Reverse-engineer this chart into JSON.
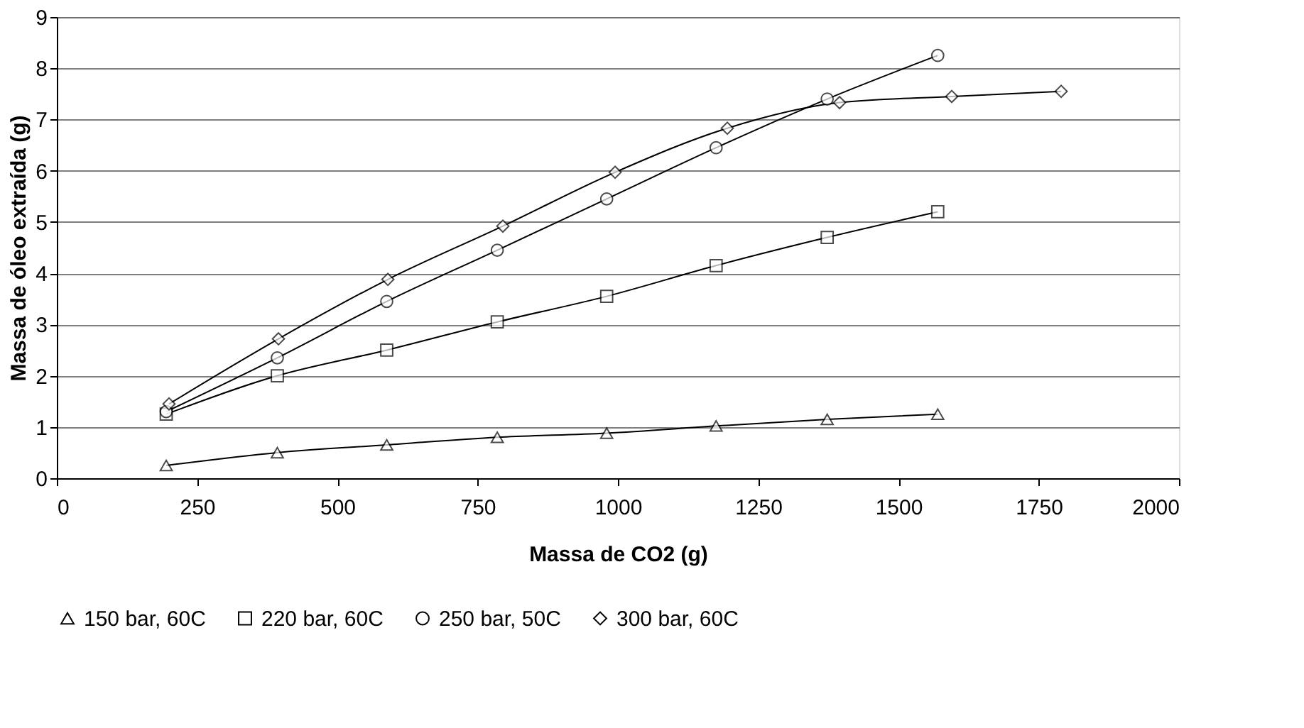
{
  "chart_data": {
    "type": "line",
    "xlabel": "Massa de CO2 (g)",
    "ylabel": "Massa de óleo extraída (g)",
    "xlim": [
      0,
      2000
    ],
    "xticks": [
      0,
      250,
      500,
      750,
      1000,
      1250,
      1500,
      1750,
      2000
    ],
    "ylim": [
      0,
      9
    ],
    "yticks": [
      0,
      1,
      2,
      3,
      4,
      5,
      6,
      7,
      8,
      9
    ],
    "grid": "y",
    "legend": "bottom",
    "line_style": "solid",
    "series": [
      {
        "name": "150 bar, 60C",
        "color": "#000000",
        "marker": "triangle",
        "x": [
          195,
          393,
          588,
          785,
          980,
          1175,
          1373,
          1570
        ],
        "values": [
          0.25,
          0.5,
          0.65,
          0.8,
          0.88,
          1.02,
          1.15,
          1.25
        ]
      },
      {
        "name": "220 bar, 60C",
        "color": "#000000",
        "marker": "square",
        "x": [
          195,
          393,
          588,
          785,
          980,
          1175,
          1373,
          1570
        ],
        "values": [
          1.25,
          2.0,
          2.5,
          3.05,
          3.55,
          4.15,
          4.7,
          5.2
        ]
      },
      {
        "name": "250 bar, 50C",
        "color": "#000000",
        "marker": "circle",
        "x": [
          195,
          393,
          588,
          785,
          980,
          1175,
          1373,
          1570
        ],
        "values": [
          1.3,
          2.35,
          3.45,
          4.45,
          5.45,
          6.45,
          7.4,
          8.25
        ]
      },
      {
        "name": "300 bar, 60C",
        "color": "#000000",
        "marker": "diamond",
        "x": [
          200,
          395,
          590,
          795,
          995,
          1195,
          1395,
          1595,
          1790
        ],
        "values": [
          1.45,
          2.72,
          3.88,
          4.92,
          5.97,
          6.83,
          7.33,
          7.45,
          7.55
        ]
      }
    ]
  }
}
